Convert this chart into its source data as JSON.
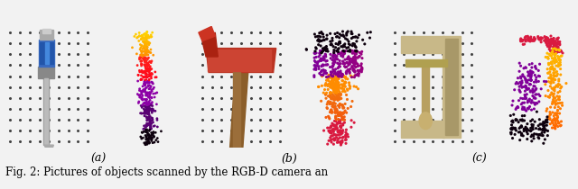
{
  "caption": "Fig. 2: Pictures of objects scanned by the RGB-D camera an",
  "subfig_labels": [
    "(a)",
    "(b)",
    "(c)"
  ],
  "background_color": "#f2f2f2",
  "photo_bg": "#2a2a2a",
  "pc_bg": "#ffffff",
  "fig_width": 6.4,
  "fig_height": 2.1,
  "caption_fontsize": 8.5,
  "label_fontsize": 9
}
